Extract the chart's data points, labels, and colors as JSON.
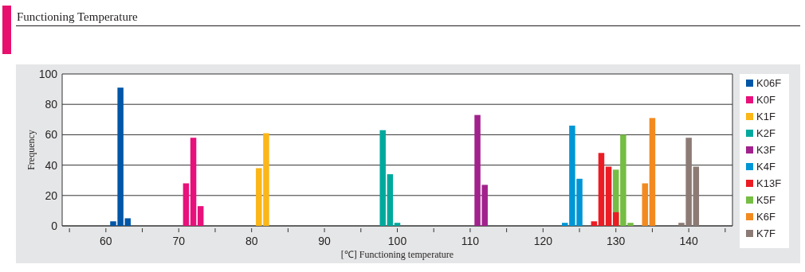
{
  "chart_data": {
    "type": "bar",
    "title": "Functioning Temperature",
    "xlabel": "[℃] Functioning temperature",
    "ylabel": "Frequency",
    "xlim": [
      54,
      146
    ],
    "xticks": [
      {
        "value": 55,
        "label": null
      },
      60,
      {
        "value": 65,
        "label": null
      },
      70,
      {
        "value": 75,
        "label": null
      },
      80,
      {
        "value": 85,
        "label": null
      },
      90,
      {
        "value": 95,
        "label": null
      },
      100,
      {
        "value": 105,
        "label": null
      },
      110,
      {
        "value": 115,
        "label": null
      },
      120,
      {
        "value": 125,
        "label": null
      },
      130,
      {
        "value": 135,
        "label": null
      },
      140,
      {
        "value": 145,
        "label": null
      }
    ],
    "ylim": [
      0,
      100
    ],
    "yticks": [
      0,
      20,
      40,
      60,
      80,
      100
    ],
    "grid": "y",
    "legend": "right",
    "series": [
      {
        "name": "K06F",
        "color": "#0056a7",
        "x": [
          61,
          62,
          63
        ],
        "values": [
          3,
          91,
          5
        ]
      },
      {
        "name": "K0F",
        "color": "#e8107a",
        "x": [
          71,
          72,
          73
        ],
        "values": [
          28,
          58,
          13
        ]
      },
      {
        "name": "K1F",
        "color": "#fbb617",
        "x": [
          81,
          82
        ],
        "values": [
          38,
          61
        ]
      },
      {
        "name": "K2F",
        "color": "#00a99d",
        "x": [
          98,
          99,
          100
        ],
        "values": [
          63,
          34,
          2
        ]
      },
      {
        "name": "K3F",
        "color": "#a1228c",
        "x": [
          111,
          112
        ],
        "values": [
          73,
          27
        ]
      },
      {
        "name": "K4F",
        "color": "#0096d6",
        "x": [
          123,
          124,
          125
        ],
        "values": [
          2,
          66,
          31
        ]
      },
      {
        "name": "K13F",
        "color": "#ec1c24",
        "x": [
          127,
          128,
          129,
          130
        ],
        "values": [
          3,
          48,
          39,
          9
        ]
      },
      {
        "name": "K5F",
        "color": "#76bd43",
        "x": [
          130,
          131,
          132
        ],
        "values": [
          37,
          60,
          2
        ]
      },
      {
        "name": "K6F",
        "color": "#f28a20",
        "x": [
          134,
          135
        ],
        "values": [
          28,
          71
        ]
      },
      {
        "name": "K7F",
        "color": "#8c7b75",
        "x": [
          139,
          140,
          141
        ],
        "values": [
          2,
          58,
          39
        ]
      }
    ]
  }
}
